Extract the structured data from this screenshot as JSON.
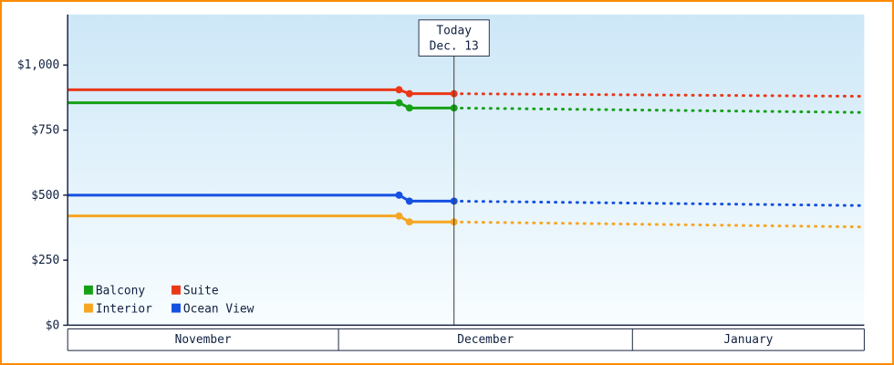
{
  "colors": {
    "border": "#ff8a00",
    "text": "#102040",
    "axis": "#1a2440",
    "plot_bg_top": "#cde7f7",
    "plot_bg_bottom": "#f8fdff",
    "today_line": "#3a3a3a",
    "today_box_bg": "#ffffff",
    "today_box_border": "#2a3550"
  },
  "chart_data": {
    "type": "line",
    "ylim": [
      0,
      1000
    ],
    "grid": false,
    "legend_position": "bottom-left-inside",
    "y_ticks": [
      {
        "value": 0,
        "label": "$0"
      },
      {
        "value": 250,
        "label": "$250"
      },
      {
        "value": 500,
        "label": "$500"
      },
      {
        "value": 750,
        "label": "$750"
      },
      {
        "value": 1000,
        "label": "$1,000"
      }
    ],
    "x_months": [
      {
        "label": "November",
        "start": 0,
        "end": 34
      },
      {
        "label": "December",
        "start": 34,
        "end": 70.9
      },
      {
        "label": "January",
        "start": 70.9,
        "end": 100
      }
    ],
    "today": {
      "x": 48.5,
      "label_line1": "Today",
      "label_line2": "Dec. 13"
    },
    "x_domain": [
      0,
      100
    ],
    "series": [
      {
        "name": "Balcony",
        "color": "#16a016",
        "solid": [
          [
            0,
            855
          ],
          [
            41.6,
            855
          ],
          [
            42.9,
            835
          ],
          [
            48.5,
            835
          ]
        ],
        "dotted": [
          [
            48.5,
            835
          ],
          [
            99.5,
            818
          ]
        ],
        "markers": [
          [
            41.6,
            855
          ],
          [
            42.9,
            835
          ],
          [
            48.5,
            835
          ]
        ]
      },
      {
        "name": "Suite",
        "color": "#ea3818",
        "solid": [
          [
            0,
            905
          ],
          [
            41.6,
            905
          ],
          [
            42.9,
            890
          ],
          [
            48.5,
            890
          ]
        ],
        "dotted": [
          [
            48.5,
            890
          ],
          [
            99.5,
            880
          ]
        ],
        "markers": [
          [
            41.6,
            905
          ],
          [
            42.9,
            890
          ],
          [
            48.5,
            890
          ]
        ]
      },
      {
        "name": "Interior",
        "color": "#f6a623",
        "solid": [
          [
            0,
            420
          ],
          [
            41.6,
            420
          ],
          [
            42.9,
            397
          ],
          [
            48.5,
            397
          ]
        ],
        "dotted": [
          [
            48.5,
            397
          ],
          [
            99.5,
            378
          ]
        ],
        "markers": [
          [
            41.6,
            420
          ],
          [
            42.9,
            397
          ],
          [
            48.5,
            397
          ]
        ]
      },
      {
        "name": "Ocean View",
        "color": "#1550e0",
        "solid": [
          [
            0,
            500
          ],
          [
            41.6,
            500
          ],
          [
            42.9,
            477
          ],
          [
            48.5,
            477
          ]
        ],
        "dotted": [
          [
            48.5,
            477
          ],
          [
            99.5,
            460
          ]
        ],
        "markers": [
          [
            41.6,
            500
          ],
          [
            42.9,
            477
          ],
          [
            48.5,
            477
          ]
        ]
      }
    ]
  },
  "legend": {
    "items": [
      "Balcony",
      "Suite",
      "Interior",
      "Ocean View"
    ]
  }
}
